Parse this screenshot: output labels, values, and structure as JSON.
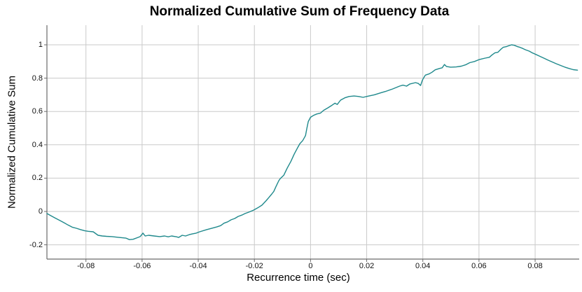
{
  "chart_data": {
    "type": "line",
    "title": "Normalized Cumulative Sum of Frequency Data",
    "xlabel": "Recurrence time (sec)",
    "ylabel": "Normalized Cumulative Sum",
    "xlim": [
      -0.0939,
      0.0957
    ],
    "ylim": [
      -0.2857,
      1.1176
    ],
    "xticks": [
      -0.08,
      -0.06,
      -0.04,
      -0.02,
      0,
      0.02,
      0.04,
      0.06,
      0.08
    ],
    "xtick_labels": [
      "-0.08",
      "-0.06",
      "-0.04",
      "-0.02",
      "0",
      "0.02",
      "0.04",
      "0.06",
      "0.08"
    ],
    "yticks": [
      -0.2,
      0,
      0.2,
      0.4,
      0.6,
      0.8,
      1
    ],
    "ytick_labels": [
      "-0.2",
      "0",
      "0.2",
      "0.4",
      "0.6",
      "0.8",
      "1"
    ],
    "grid": true,
    "legend": "none",
    "colors": {
      "line": "#1f898c",
      "grid": "#cacaca",
      "axis": "#6b6b6b",
      "text": "#000000",
      "background": "#ffffff"
    },
    "series": [
      {
        "name": "normalized-cumulative-sum",
        "points": [
          [
            -0.0939,
            -0.012
          ],
          [
            -0.0924,
            -0.026
          ],
          [
            -0.0909,
            -0.04
          ],
          [
            -0.0894,
            -0.053
          ],
          [
            -0.0879,
            -0.067
          ],
          [
            -0.0864,
            -0.081
          ],
          [
            -0.0849,
            -0.094
          ],
          [
            -0.0834,
            -0.101
          ],
          [
            -0.0819,
            -0.109
          ],
          [
            -0.0804,
            -0.116
          ],
          [
            -0.0792,
            -0.119
          ],
          [
            -0.0774,
            -0.122
          ],
          [
            -0.0757,
            -0.143
          ],
          [
            -0.0742,
            -0.147
          ],
          [
            -0.0727,
            -0.149
          ],
          [
            -0.0707,
            -0.151
          ],
          [
            -0.0682,
            -0.156
          ],
          [
            -0.0657,
            -0.16
          ],
          [
            -0.0645,
            -0.169
          ],
          [
            -0.0632,
            -0.167
          ],
          [
            -0.0615,
            -0.156
          ],
          [
            -0.0607,
            -0.151
          ],
          [
            -0.0597,
            -0.13
          ],
          [
            -0.0589,
            -0.147
          ],
          [
            -0.0577,
            -0.143
          ],
          [
            -0.0557,
            -0.147
          ],
          [
            -0.0537,
            -0.151
          ],
          [
            -0.052,
            -0.147
          ],
          [
            -0.0507,
            -0.152
          ],
          [
            -0.0495,
            -0.147
          ],
          [
            -0.0477,
            -0.152
          ],
          [
            -0.047,
            -0.156
          ],
          [
            -0.0457,
            -0.143
          ],
          [
            -0.0445,
            -0.147
          ],
          [
            -0.0432,
            -0.139
          ],
          [
            -0.042,
            -0.134
          ],
          [
            -0.0407,
            -0.13
          ],
          [
            -0.0395,
            -0.122
          ],
          [
            -0.037,
            -0.109
          ],
          [
            -0.035,
            -0.1
          ],
          [
            -0.0333,
            -0.092
          ],
          [
            -0.032,
            -0.085
          ],
          [
            -0.0308,
            -0.07
          ],
          [
            -0.0295,
            -0.062
          ],
          [
            -0.0283,
            -0.05
          ],
          [
            -0.027,
            -0.042
          ],
          [
            -0.0258,
            -0.03
          ],
          [
            -0.0245,
            -0.022
          ],
          [
            -0.0233,
            -0.012
          ],
          [
            -0.022,
            -0.004
          ],
          [
            -0.0203,
            0.008
          ],
          [
            -0.0188,
            0.022
          ],
          [
            -0.0173,
            0.038
          ],
          [
            -0.0158,
            0.065
          ],
          [
            -0.0148,
            0.085
          ],
          [
            -0.0138,
            0.105
          ],
          [
            -0.0131,
            0.12
          ],
          [
            -0.0123,
            0.15
          ],
          [
            -0.0113,
            0.185
          ],
          [
            -0.0108,
            0.197
          ],
          [
            -0.0095,
            0.218
          ],
          [
            -0.0083,
            0.26
          ],
          [
            -0.007,
            0.3
          ],
          [
            -0.0058,
            0.344
          ],
          [
            -0.0045,
            0.386
          ],
          [
            -0.0038,
            0.407
          ],
          [
            -0.0028,
            0.425
          ],
          [
            -0.0018,
            0.455
          ],
          [
            -0.0013,
            0.5
          ],
          [
            -0.0008,
            0.54
          ],
          [
            0.0,
            0.565
          ],
          [
            0.001,
            0.576
          ],
          [
            0.0022,
            0.585
          ],
          [
            0.0035,
            0.59
          ],
          [
            0.0047,
            0.607
          ],
          [
            0.0062,
            0.622
          ],
          [
            0.0077,
            0.638
          ],
          [
            0.0087,
            0.65
          ],
          [
            0.0095,
            0.642
          ],
          [
            0.0107,
            0.668
          ],
          [
            0.0122,
            0.682
          ],
          [
            0.0137,
            0.69
          ],
          [
            0.0155,
            0.693
          ],
          [
            0.0172,
            0.69
          ],
          [
            0.0187,
            0.685
          ],
          [
            0.0205,
            0.692
          ],
          [
            0.0227,
            0.7
          ],
          [
            0.0252,
            0.713
          ],
          [
            0.0267,
            0.72
          ],
          [
            0.0292,
            0.735
          ],
          [
            0.0317,
            0.752
          ],
          [
            0.0329,
            0.758
          ],
          [
            0.0342,
            0.752
          ],
          [
            0.0354,
            0.765
          ],
          [
            0.0374,
            0.773
          ],
          [
            0.0384,
            0.768
          ],
          [
            0.0392,
            0.756
          ],
          [
            0.0399,
            0.79
          ],
          [
            0.0409,
            0.818
          ],
          [
            0.0422,
            0.825
          ],
          [
            0.0432,
            0.835
          ],
          [
            0.0444,
            0.85
          ],
          [
            0.0459,
            0.858
          ],
          [
            0.0469,
            0.862
          ],
          [
            0.0477,
            0.882
          ],
          [
            0.0484,
            0.87
          ],
          [
            0.0499,
            0.866
          ],
          [
            0.0519,
            0.867
          ],
          [
            0.0537,
            0.872
          ],
          [
            0.0552,
            0.88
          ],
          [
            0.0567,
            0.893
          ],
          [
            0.0584,
            0.9
          ],
          [
            0.0602,
            0.912
          ],
          [
            0.0622,
            0.92
          ],
          [
            0.0637,
            0.925
          ],
          [
            0.0647,
            0.94
          ],
          [
            0.0657,
            0.952
          ],
          [
            0.0667,
            0.955
          ],
          [
            0.0677,
            0.972
          ],
          [
            0.0686,
            0.985
          ],
          [
            0.0699,
            0.99
          ],
          [
            0.0709,
            0.996
          ],
          [
            0.0716,
            1.0
          ],
          [
            0.0726,
            0.997
          ],
          [
            0.0736,
            0.99
          ],
          [
            0.0746,
            0.985
          ],
          [
            0.0756,
            0.978
          ],
          [
            0.0766,
            0.97
          ],
          [
            0.0779,
            0.962
          ],
          [
            0.0791,
            0.951
          ],
          [
            0.0803,
            0.942
          ],
          [
            0.0816,
            0.932
          ],
          [
            0.0831,
            0.92
          ],
          [
            0.0846,
            0.908
          ],
          [
            0.0861,
            0.897
          ],
          [
            0.0876,
            0.886
          ],
          [
            0.0891,
            0.876
          ],
          [
            0.0906,
            0.866
          ],
          [
            0.0921,
            0.858
          ],
          [
            0.0936,
            0.851
          ],
          [
            0.0951,
            0.848
          ]
        ]
      }
    ]
  }
}
